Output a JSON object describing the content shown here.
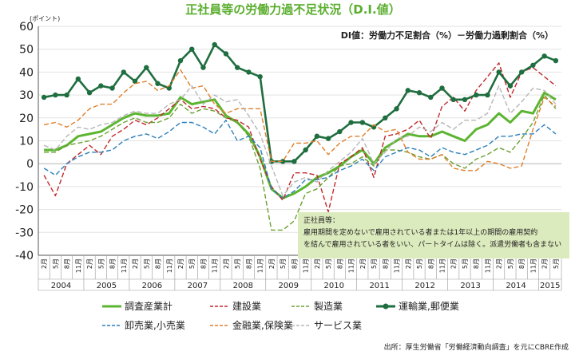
{
  "chart_data": {
    "type": "line",
    "title": "正社員等の労働力過不足状況（D.I.値）",
    "ylabel": "(ポイント)",
    "subtitle": "DI値：労働力不足割合（%）－労働力過剰割合（%）",
    "ylim": [
      -40,
      60
    ],
    "yticks": [
      "60",
      "50",
      "40",
      "30",
      "20",
      "10",
      "0",
      "-10",
      "-20",
      "-30",
      "-40"
    ],
    "x": [
      "2月",
      "5月",
      "8月",
      "11月",
      "2月",
      "5月",
      "8月",
      "11月",
      "2月",
      "5月",
      "8月",
      "11月",
      "2月",
      "5月",
      "8月",
      "11月",
      "2月",
      "5月",
      "8月",
      "11月",
      "2月",
      "5月",
      "8月",
      "11月",
      "2月",
      "5月",
      "8月",
      "11月",
      "2月",
      "5月",
      "8月",
      "11月",
      "2月",
      "5月",
      "8月",
      "11月",
      "2月",
      "5月",
      "8月",
      "11月",
      "2月",
      "5月",
      "8月",
      "11月",
      "2月",
      "5月"
    ],
    "years": [
      {
        "label": "2004",
        "start": 0,
        "end": 3
      },
      {
        "label": "2005",
        "start": 4,
        "end": 7
      },
      {
        "label": "2006",
        "start": 8,
        "end": 11
      },
      {
        "label": "2007",
        "start": 12,
        "end": 15
      },
      {
        "label": "2008",
        "start": 16,
        "end": 19
      },
      {
        "label": "2009",
        "start": 20,
        "end": 23
      },
      {
        "label": "2010",
        "start": 24,
        "end": 27
      },
      {
        "label": "2011",
        "start": 28,
        "end": 31
      },
      {
        "label": "2012",
        "start": 32,
        "end": 35
      },
      {
        "label": "2013",
        "start": 36,
        "end": 39
      },
      {
        "label": "2014",
        "start": 40,
        "end": 43
      },
      {
        "label": "2015",
        "start": 44,
        "end": 45
      }
    ],
    "series": [
      {
        "name": "調査産業計",
        "color": "#5cb531",
        "dash": "solid",
        "width": 3,
        "values": [
          6,
          6,
          8,
          12,
          13,
          14,
          17,
          20,
          22,
          21,
          21,
          22,
          29,
          26,
          27,
          28,
          21,
          18,
          13,
          3,
          -11,
          -15,
          -13,
          -10,
          -6,
          -4,
          -1,
          3,
          6,
          0,
          7,
          10,
          13,
          12,
          12,
          14,
          12,
          10,
          15,
          17,
          22,
          18,
          23,
          22,
          31,
          28
        ]
      },
      {
        "name": "建設業",
        "color": "#c0282c",
        "dash": "6,3",
        "width": 1.4,
        "values": [
          -5,
          -14,
          0,
          4,
          8,
          4,
          12,
          15,
          19,
          17,
          20,
          24,
          28,
          24,
          25,
          24,
          20,
          19,
          16,
          2,
          -10,
          -16,
          -4,
          -4,
          -5,
          -21,
          0,
          3,
          7,
          -6,
          12,
          13,
          15,
          19,
          11,
          25,
          29,
          23,
          32,
          38,
          44,
          29,
          40,
          42,
          38,
          34
        ]
      },
      {
        "name": "製造業",
        "color": "#6aa131",
        "dash": "6,3",
        "width": 1.4,
        "values": [
          5,
          5,
          8,
          9,
          10,
          12,
          15,
          18,
          20,
          18,
          18,
          20,
          26,
          22,
          24,
          23,
          20,
          18,
          12,
          -2,
          -29,
          -29,
          -25,
          -13,
          -11,
          -6,
          -1,
          0,
          3,
          -1,
          6,
          6,
          5,
          3,
          2,
          4,
          0,
          -2,
          2,
          4,
          7,
          5,
          11,
          18,
          30,
          24
        ]
      },
      {
        "name": "運輸業,郵便業",
        "color": "#1f6e3f",
        "dash": "solid",
        "width": 2.6,
        "marker": true,
        "values": [
          29,
          30,
          30,
          37,
          31,
          34,
          33,
          40,
          36,
          42,
          35,
          33,
          45,
          50,
          42,
          52,
          48,
          42,
          40,
          38,
          1,
          1,
          1,
          6,
          12,
          11,
          14,
          18,
          18,
          16,
          20,
          24,
          32,
          31,
          29,
          33,
          28,
          28,
          30,
          30,
          40,
          34,
          40,
          43,
          47,
          45
        ]
      },
      {
        "name": "卸売業,小売業",
        "color": "#2b7fba",
        "dash": "6,3",
        "width": 1.4,
        "values": [
          -2,
          -5,
          0,
          3,
          5,
          5,
          6,
          10,
          12,
          13,
          11,
          14,
          18,
          18,
          16,
          13,
          19,
          10,
          12,
          7,
          -11,
          -15,
          -12,
          -7,
          -7,
          -6,
          -3,
          -1,
          2,
          -3,
          3,
          5,
          7,
          6,
          3,
          7,
          5,
          4,
          6,
          8,
          12,
          12,
          13,
          13,
          17,
          13
        ]
      },
      {
        "name": "金融業,保険業",
        "color": "#e07f2a",
        "dash": "6,3",
        "width": 1.4,
        "values": [
          17,
          18,
          16,
          19,
          24,
          26,
          26,
          31,
          35,
          36,
          32,
          34,
          41,
          33,
          34,
          26,
          22,
          24,
          24,
          24,
          1,
          1,
          9,
          9,
          10,
          4,
          9,
          12,
          12,
          17,
          14,
          15,
          5,
          2,
          2,
          4,
          -2,
          -3,
          -3,
          1,
          0,
          -2,
          -1,
          15,
          29,
          25
        ]
      },
      {
        "name": "サービス業",
        "color": "#b7b7b7",
        "dash": "6,3",
        "width": 1.4,
        "values": [
          8,
          6,
          12,
          16,
          15,
          17,
          18,
          21,
          23,
          22,
          22,
          26,
          28,
          34,
          26,
          30,
          27,
          28,
          21,
          13,
          -1,
          -14,
          -8,
          -6,
          -8,
          -3,
          1,
          5,
          11,
          0,
          5,
          11,
          12,
          16,
          14,
          18,
          15,
          19,
          19,
          22,
          34,
          22,
          27,
          33,
          32,
          26
        ]
      }
    ],
    "note": {
      "title": "正社員等：",
      "lines": [
        "雇用期間を定めないで雇用されている者または1年以上の期間の雇用契約",
        "を結んで雇用されている者をいい、パートタイムは除く。派遣労働者も含まない"
      ]
    },
    "source": "出所：厚生労働省「労働経済動向調査」を元にCBRE作成"
  }
}
